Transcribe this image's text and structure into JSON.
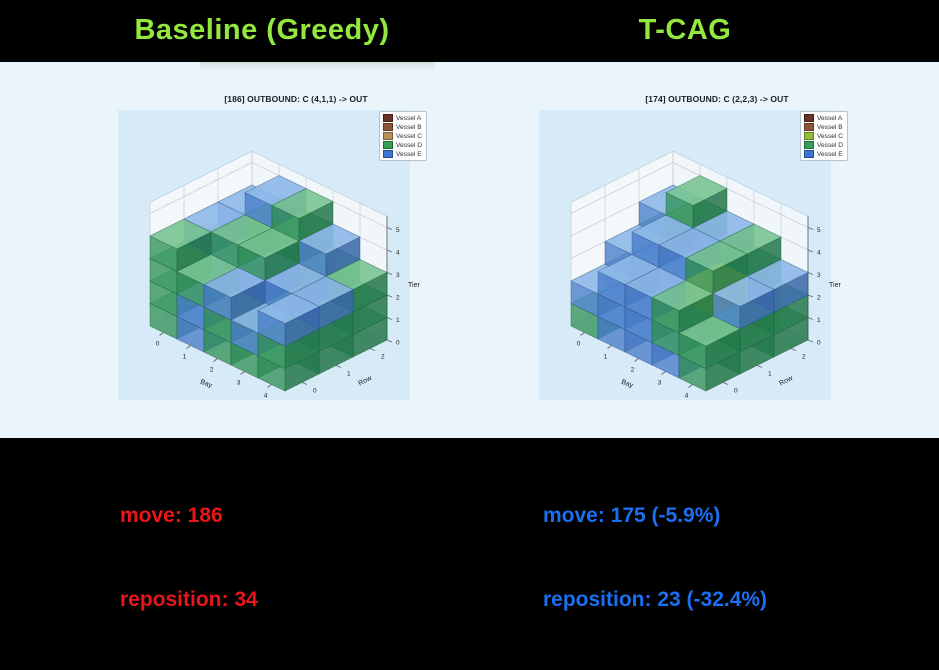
{
  "header": {
    "left_title": "Baseline (Greedy)",
    "right_title": "T-CAG",
    "title_color": "#93e83f",
    "background": "#000000"
  },
  "stage": {
    "background": "#e9f4fb",
    "axes_background": "#d7eaf8"
  },
  "footer": {
    "left": {
      "lines": [
        "move: 186",
        "reposition: 34"
      ],
      "color": "#ea1519"
    },
    "right": {
      "lines": [
        "move: 175 (-5.9%)",
        "reposition: 23 (-32.4%)"
      ],
      "color": "#1a70f0"
    },
    "background": "#000000"
  },
  "chart_data": [
    {
      "type": "voxel-3d",
      "title": "[186] OUTBOUND: C (4,1,1) -> OUT",
      "xlabel": "Bay",
      "ylabel": "Row",
      "zlabel": "Tier",
      "x_ticks": [
        "0",
        "1",
        "2",
        "3",
        "4"
      ],
      "y_ticks": [
        "0",
        "1",
        "2"
      ],
      "z_ticks": [
        "0",
        "1",
        "2",
        "3",
        "4",
        "5"
      ],
      "bay_count": 5,
      "row_count": 3,
      "tier_max": 5,
      "legend": [
        {
          "label": "Vessel A",
          "color": "#6b3226"
        },
        {
          "label": "Vessel B",
          "color": "#8a5636"
        },
        {
          "label": "Vessel C",
          "color": "#b39059"
        },
        {
          "label": "Vessel D",
          "color": "#35a055"
        },
        {
          "label": "Vessel E",
          "color": "#3b77d2"
        }
      ],
      "vessel_colors": {
        "D": {
          "top": "#79c492",
          "left": "#35945e",
          "right": "#1f7547",
          "edge": "#1b5e3a"
        },
        "E": {
          "top": "#8db8e8",
          "left": "#4a7fcb",
          "right": "#3563a6",
          "edge": "#2b4f85"
        },
        "C": {
          "top": "#cede5e",
          "left": "#a9bf37",
          "right": "#93a82b",
          "edge": "#dde804"
        }
      },
      "stacks": [
        {
          "bay": 0,
          "row": 2,
          "tiers": [
            "E",
            "D",
            "D",
            "E"
          ]
        },
        {
          "bay": 1,
          "row": 2,
          "tiers": [
            "D",
            "D",
            "D",
            "D",
            "E"
          ]
        },
        {
          "bay": 2,
          "row": 2,
          "tiers": [
            "D",
            "D",
            "E",
            "D",
            "D"
          ]
        },
        {
          "bay": 3,
          "row": 2,
          "tiers": [
            "E",
            "E",
            "D",
            "E"
          ]
        },
        {
          "bay": 4,
          "row": 2,
          "tiers": [
            "D",
            "D",
            "D"
          ]
        },
        {
          "bay": 0,
          "row": 1,
          "tiers": [
            "D",
            "E",
            "D",
            "E"
          ]
        },
        {
          "bay": 1,
          "row": 1,
          "tiers": [
            "D",
            "D",
            "E",
            "D"
          ]
        },
        {
          "bay": 2,
          "row": 1,
          "tiers": [
            "E",
            "E",
            "E",
            "D"
          ]
        },
        {
          "bay": 3,
          "row": 1,
          "tiers": [
            "E",
            "D",
            "E"
          ]
        },
        {
          "bay": 4,
          "row": 1,
          "tiers": [
            "D",
            "D",
            "E"
          ]
        },
        {
          "bay": 0,
          "row": 0,
          "tiers": [
            "D",
            "D",
            "D",
            "D"
          ]
        },
        {
          "bay": 1,
          "row": 0,
          "tiers": [
            "E",
            "E",
            "D"
          ]
        },
        {
          "bay": 2,
          "row": 0,
          "tiers": [
            "D",
            "D",
            "E"
          ]
        },
        {
          "bay": 3,
          "row": 0,
          "tiers": [
            "D",
            "E"
          ]
        },
        {
          "bay": 4,
          "row": 0,
          "tiers": [
            "D",
            "D",
            "E"
          ]
        }
      ]
    },
    {
      "type": "voxel-3d",
      "title": "[174] OUTBOUND: C (2,2,3) -> OUT",
      "xlabel": "Bay",
      "ylabel": "Row",
      "zlabel": "Tier",
      "x_ticks": [
        "0",
        "1",
        "2",
        "3",
        "4"
      ],
      "y_ticks": [
        "0",
        "1",
        "2"
      ],
      "z_ticks": [
        "0",
        "1",
        "2",
        "3",
        "4",
        "5"
      ],
      "bay_count": 5,
      "row_count": 3,
      "tier_max": 5,
      "legend": [
        {
          "label": "Vessel A",
          "color": "#6b3226"
        },
        {
          "label": "Vessel B",
          "color": "#8a5636"
        },
        {
          "label": "Vessel C",
          "color": "#8fbe3a"
        },
        {
          "label": "Vessel D",
          "color": "#35a055"
        },
        {
          "label": "Vessel E",
          "color": "#3b77d2"
        }
      ],
      "vessel_colors": {
        "D": {
          "top": "#79c492",
          "left": "#35945e",
          "right": "#1f7547",
          "edge": "#1b5e3a"
        },
        "E": {
          "top": "#8db8e8",
          "left": "#4a7fcb",
          "right": "#3563a6",
          "edge": "#2b4f85"
        },
        "C": {
          "top": "#cede5e",
          "left": "#a9bf37",
          "right": "#93a82b",
          "edge": "#dde804"
        }
      },
      "stacks": [
        {
          "bay": 0,
          "row": 2,
          "tiers": [
            "E",
            "E",
            "D",
            "E"
          ]
        },
        {
          "bay": 1,
          "row": 2,
          "tiers": [
            "D",
            "E",
            "E",
            "D",
            "D"
          ]
        },
        {
          "bay": 2,
          "row": 2,
          "tiers": [
            "E",
            "E",
            "E",
            "E"
          ]
        },
        {
          "bay": 3,
          "row": 2,
          "tiers": [
            "D",
            "E",
            "D",
            "D"
          ]
        },
        {
          "bay": 4,
          "row": 2,
          "tiers": [
            "D",
            "D",
            "E"
          ]
        },
        {
          "bay": 0,
          "row": 1,
          "tiers": [
            "D",
            "E",
            "E"
          ]
        },
        {
          "bay": 1,
          "row": 1,
          "tiers": [
            "E",
            "E",
            "E",
            "E"
          ]
        },
        {
          "bay": 2,
          "row": 1,
          "tiers": [
            "E",
            "E",
            "E",
            "E"
          ]
        },
        {
          "bay": 3,
          "row": 1,
          "tiers": [
            "D",
            "D",
            "C",
            "D"
          ]
        },
        {
          "bay": 4,
          "row": 1,
          "tiers": [
            "D",
            "D",
            "E"
          ]
        },
        {
          "bay": 0,
          "row": 0,
          "tiers": [
            "D",
            "E"
          ]
        },
        {
          "bay": 1,
          "row": 0,
          "tiers": [
            "E",
            "E",
            "E"
          ]
        },
        {
          "bay": 2,
          "row": 0,
          "tiers": [
            "E",
            "E",
            "E"
          ]
        },
        {
          "bay": 3,
          "row": 0,
          "tiers": [
            "E",
            "D",
            "D"
          ]
        },
        {
          "bay": 4,
          "row": 0,
          "tiers": [
            "D",
            "D"
          ]
        }
      ]
    }
  ]
}
